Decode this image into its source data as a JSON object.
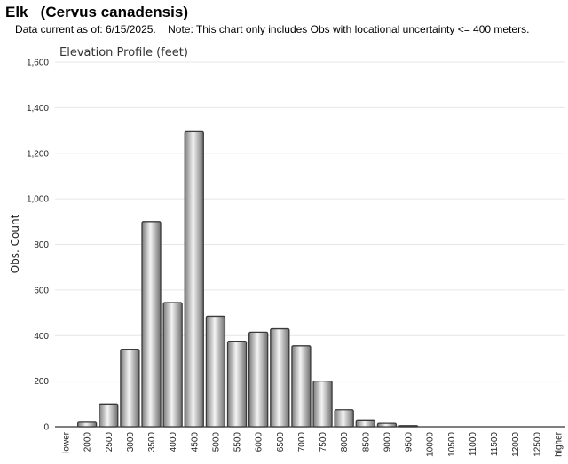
{
  "header": {
    "title": "Elk   (Cervus canadensis)",
    "note": "Data current as of: 6/15/2025.    Note: This chart only includes Obs with locational uncertainty <= 400 meters."
  },
  "colors": {
    "bar_fill": "#c8c8c8",
    "bar_stroke": "#3a3a3a",
    "grid": "#e6e6e6"
  },
  "chart_data": {
    "type": "bar",
    "title": "Elevation Profile (feet)",
    "xlabel": "",
    "ylabel": "Obs. Count",
    "ylim": [
      0,
      1600
    ],
    "yticks": [
      0,
      200,
      400,
      600,
      800,
      1000,
      1200,
      1400,
      1600
    ],
    "ytick_labels": [
      "0",
      "200",
      "400",
      "600",
      "800",
      "1,000",
      "1,200",
      "1,400",
      "1,600"
    ],
    "grid": true,
    "legend": "none",
    "categories": [
      "lower",
      "2000",
      "2500",
      "3000",
      "3500",
      "4000",
      "4500",
      "5000",
      "5500",
      "6000",
      "6500",
      "7000",
      "7500",
      "8000",
      "8500",
      "9000",
      "9500",
      "10000",
      "10500",
      "11000",
      "11500",
      "12000",
      "12500",
      "higher"
    ],
    "values": [
      0,
      20,
      100,
      340,
      900,
      545,
      1295,
      485,
      375,
      415,
      430,
      355,
      200,
      75,
      30,
      15,
      5,
      0,
      0,
      0,
      0,
      0,
      0,
      0
    ]
  }
}
